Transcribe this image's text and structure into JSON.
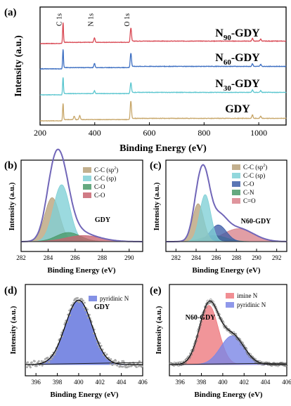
{
  "chart_data": [
    {
      "panel_label": "(a)",
      "type": "line",
      "xlabel": "Binding Energy (eV)",
      "ylabel": "Intensity (a.u.)",
      "xlim": [
        200,
        1100
      ],
      "xticks": [
        200,
        400,
        600,
        800,
        1000
      ],
      "peak_labels": [
        {
          "text": "C 1s",
          "x": 284
        },
        {
          "text": "N 1s",
          "x": 399
        },
        {
          "text": "O 1s",
          "x": 532
        }
      ],
      "series": [
        {
          "name_main": "N",
          "name_sub": "90",
          "name_rest": "-GDY",
          "color": "#d94a55",
          "peaks": [
            [
              284,
              6
            ],
            [
              399,
              1.3
            ],
            [
              532,
              4.0
            ],
            [
              977,
              0.8
            ],
            [
              1007,
              0.6
            ]
          ]
        },
        {
          "name_main": "N",
          "name_sub": "60",
          "name_rest": "-GDY",
          "color": "#3d6fc2",
          "peaks": [
            [
              284,
              5.5
            ],
            [
              399,
              1.2
            ],
            [
              532,
              4.0
            ],
            [
              977,
              0.8
            ],
            [
              1007,
              0.6
            ]
          ]
        },
        {
          "name_main": "N",
          "name_sub": "30",
          "name_rest": "-GDY",
          "color": "#5bc6cf",
          "peaks": [
            [
              284,
              5.0
            ],
            [
              399,
              0.8
            ],
            [
              532,
              3.0
            ],
            [
              977,
              0.7
            ],
            [
              1007,
              0.5
            ]
          ]
        },
        {
          "name_main": "GDY",
          "name_sub": "",
          "name_rest": "",
          "color": "#c8a76a",
          "peaks": [
            [
              284,
              5.0
            ],
            [
              325,
              1.0
            ],
            [
              345,
              1.2
            ],
            [
              532,
              5.2
            ],
            [
              977,
              1.0
            ],
            [
              1007,
              0.6
            ]
          ]
        }
      ]
    },
    {
      "panel_label": "(b)",
      "type": "area",
      "sample": "GDY",
      "xlabel": "Binding Energy (eV)",
      "ylabel": "Intensity (a.u.)",
      "xlim": [
        282,
        291
      ],
      "xticks": [
        282,
        284,
        286,
        288,
        290
      ],
      "legend": [
        {
          "label": "C-C (sp",
          "sup": "2",
          "suffix": ")",
          "color": "#b8a27a"
        },
        {
          "label": "C-C (sp)",
          "sup": "",
          "suffix": "",
          "color": "#7fd0d6"
        },
        {
          "label": "C-O",
          "sup": "",
          "suffix": "",
          "color": "#4a9a6a"
        },
        {
          "label": "C-O",
          "sup": "",
          "suffix": "",
          "color": "#c86470"
        }
      ],
      "components": [
        {
          "center": 284.3,
          "height": 0.58,
          "width": 0.55
        },
        {
          "center": 285.0,
          "height": 0.75,
          "width": 0.6
        },
        {
          "center": 285.5,
          "height": 0.12,
          "width": 0.9
        },
        {
          "center": 286.6,
          "height": 0.08,
          "width": 1.3
        }
      ]
    },
    {
      "panel_label": "(c)",
      "type": "area",
      "sample": "N60-GDY",
      "xlabel": "Binding Energy (eV)",
      "ylabel": "Intensity (a.u.)",
      "xlim": [
        281,
        293
      ],
      "xticks": [
        282,
        284,
        286,
        288,
        290,
        292
      ],
      "legend": [
        {
          "label": "C-C (sp",
          "sup": "2",
          "suffix": ")",
          "color": "#b8a27a"
        },
        {
          "label": "C-C (sp)",
          "sup": "",
          "suffix": "",
          "color": "#7fd0d6"
        },
        {
          "label": "C-O",
          "sup": "",
          "suffix": "",
          "color": "#3d5ea8"
        },
        {
          "label": "C-N",
          "sup": "",
          "suffix": "",
          "color": "#4a9a6a"
        },
        {
          "label": "C=O",
          "sup": "",
          "suffix": "",
          "color": "#d9838c"
        }
      ],
      "components": [
        {
          "center": 284.2,
          "height": 0.5,
          "width": 0.55
        },
        {
          "center": 284.9,
          "height": 0.62,
          "width": 0.55
        },
        {
          "center": 286.2,
          "height": 0.22,
          "width": 0.8
        },
        {
          "center": 285.8,
          "height": 0.08,
          "width": 1.2
        },
        {
          "center": 288.2,
          "height": 0.17,
          "width": 1.5
        }
      ]
    },
    {
      "panel_label": "(d)",
      "type": "scatter",
      "sample": "GDY",
      "xlabel": "Binding Energy (eV)",
      "ylabel": "Intensity (a.u.)",
      "xlim": [
        395,
        406
      ],
      "xticks": [
        396,
        398,
        400,
        402,
        404,
        406
      ],
      "legend": [
        {
          "label": "pyridinic N",
          "color": "#6e7ee0"
        }
      ],
      "components": [
        {
          "center": 400.0,
          "height": 0.85,
          "width": 1.25
        }
      ]
    },
    {
      "panel_label": "(e)",
      "type": "scatter",
      "sample": "N60-GDY",
      "xlabel": "Binding Energy (eV)",
      "ylabel": "Intensity (a.u.)",
      "xlim": [
        395,
        406
      ],
      "xticks": [
        396,
        398,
        400,
        402,
        404,
        406
      ],
      "legend": [
        {
          "label": "imine N",
          "color": "#ee7a80"
        },
        {
          "label": "pyridinic N",
          "color": "#7b86e6"
        }
      ],
      "components": [
        {
          "center": 398.7,
          "height": 0.78,
          "width": 0.9
        },
        {
          "center": 400.9,
          "height": 0.38,
          "width": 1.1
        }
      ]
    }
  ]
}
